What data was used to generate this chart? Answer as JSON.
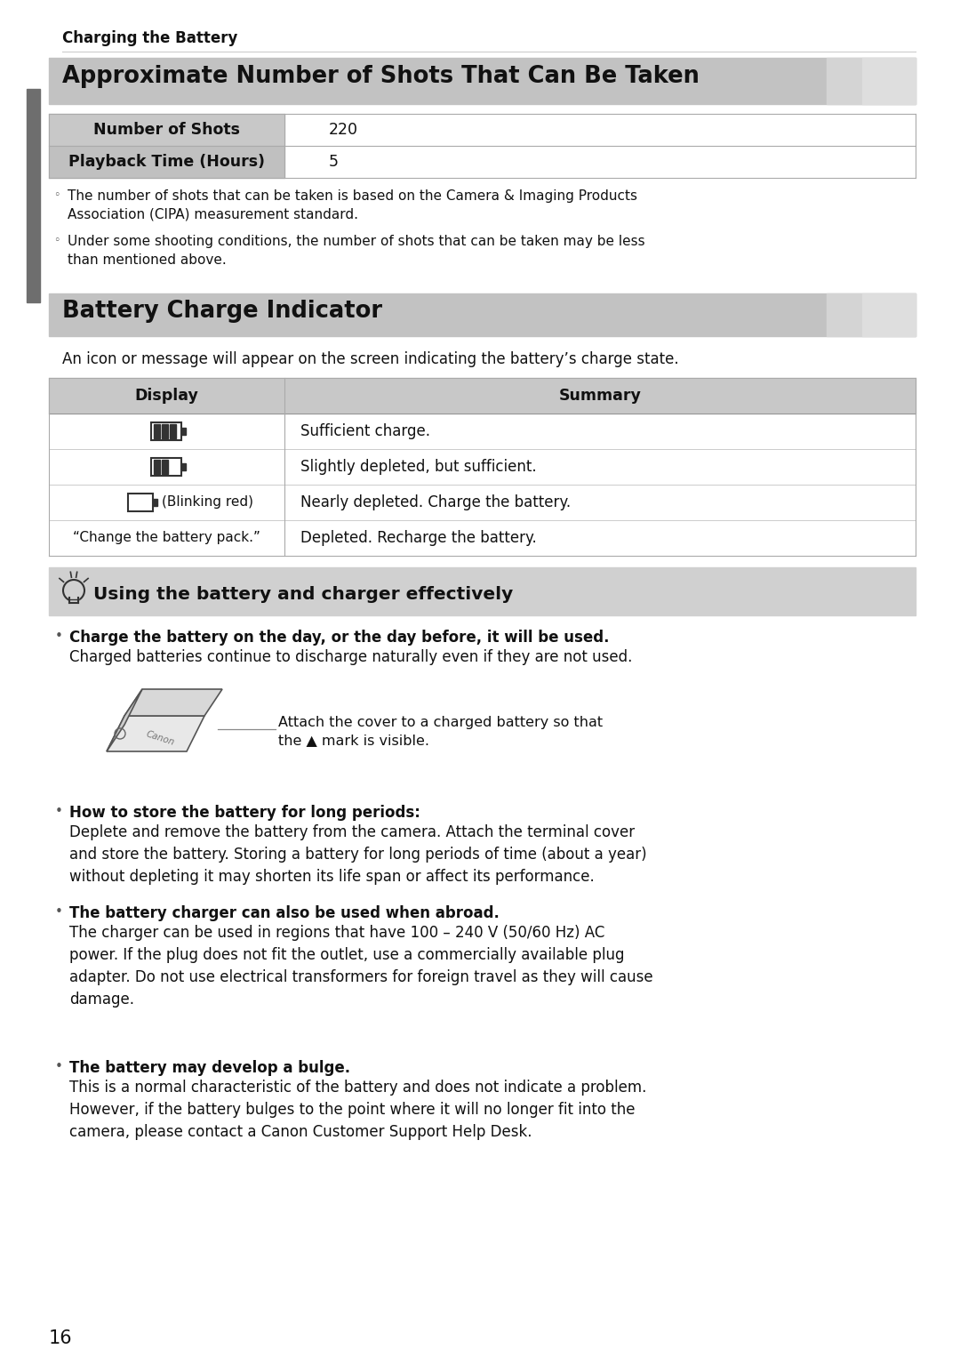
{
  "page_bg": "#ffffff",
  "page_number": "16",
  "header_text": "Charging the Battery",
  "section1_title": "Approximate Number of Shots That Can Be Taken",
  "table1_rows": [
    {
      "label": "Number of Shots",
      "value": "220"
    },
    {
      "label": "Playback Time (Hours)",
      "value": "5"
    }
  ],
  "note1": "The number of shots that can be taken is based on the Camera & Imaging Products\nAssociation (CIPA) measurement standard.",
  "note2": "Under some shooting conditions, the number of shots that can be taken may be less\nthan mentioned above.",
  "section2_title": "Battery Charge Indicator",
  "intro_text": "An icon or message will appear on the screen indicating the battery’s charge state.",
  "table2_col1": "Display",
  "table2_col2": "Summary",
  "row_summaries": [
    "Sufficient charge.",
    "Slightly depleted, but sufficient.",
    "Nearly depleted. Charge the battery.",
    "Depleted. Recharge the battery."
  ],
  "row_display_text": [
    "",
    "",
    "(Blinking red)",
    "“Change the battery pack.”"
  ],
  "tip_title": "Using the battery and charger effectively",
  "bullet1_bold": "Charge the battery on the day, or the day before, it will be used.",
  "bullet1_text": "Charged batteries continue to discharge naturally even if they are not used.",
  "battery_img_text1": "Attach the cover to a charged battery so that",
  "battery_img_text2": "the ▲ mark is visible.",
  "bullet2_bold": "How to store the battery for long periods:",
  "bullet2_text": "Deplete and remove the battery from the camera. Attach the terminal cover\nand store the battery. Storing a battery for long periods of time (about a year)\nwithout depleting it may shorten its life span or affect its performance.",
  "bullet3_bold": "The battery charger can also be used when abroad.",
  "bullet3_text": "The charger can be used in regions that have 100 – 240 V (50/60 Hz) AC\npower. If the plug does not fit the outlet, use a commercially available plug\nadapter. Do not use electrical transformers for foreign travel as they will cause\ndamage.",
  "bullet4_bold": "The battery may develop a bulge.",
  "bullet4_text": "This is a normal characteristic of the battery and does not indicate a problem.\nHowever, if the battery bulges to the point where it will no longer fit into the\ncamera, please contact a Canon Customer Support Help Desk.",
  "gray_bar_color": "#6e6e6e",
  "section_bg_light": "#c8c8c8",
  "section_bg_lighter": "#d8d8d8",
  "table_header_bg": "#c8c8c8",
  "table_row_bg": "#f0f0f0",
  "tip_bg": "#d0d0d0",
  "border_color": "#aaaaaa",
  "text_color": "#111111"
}
